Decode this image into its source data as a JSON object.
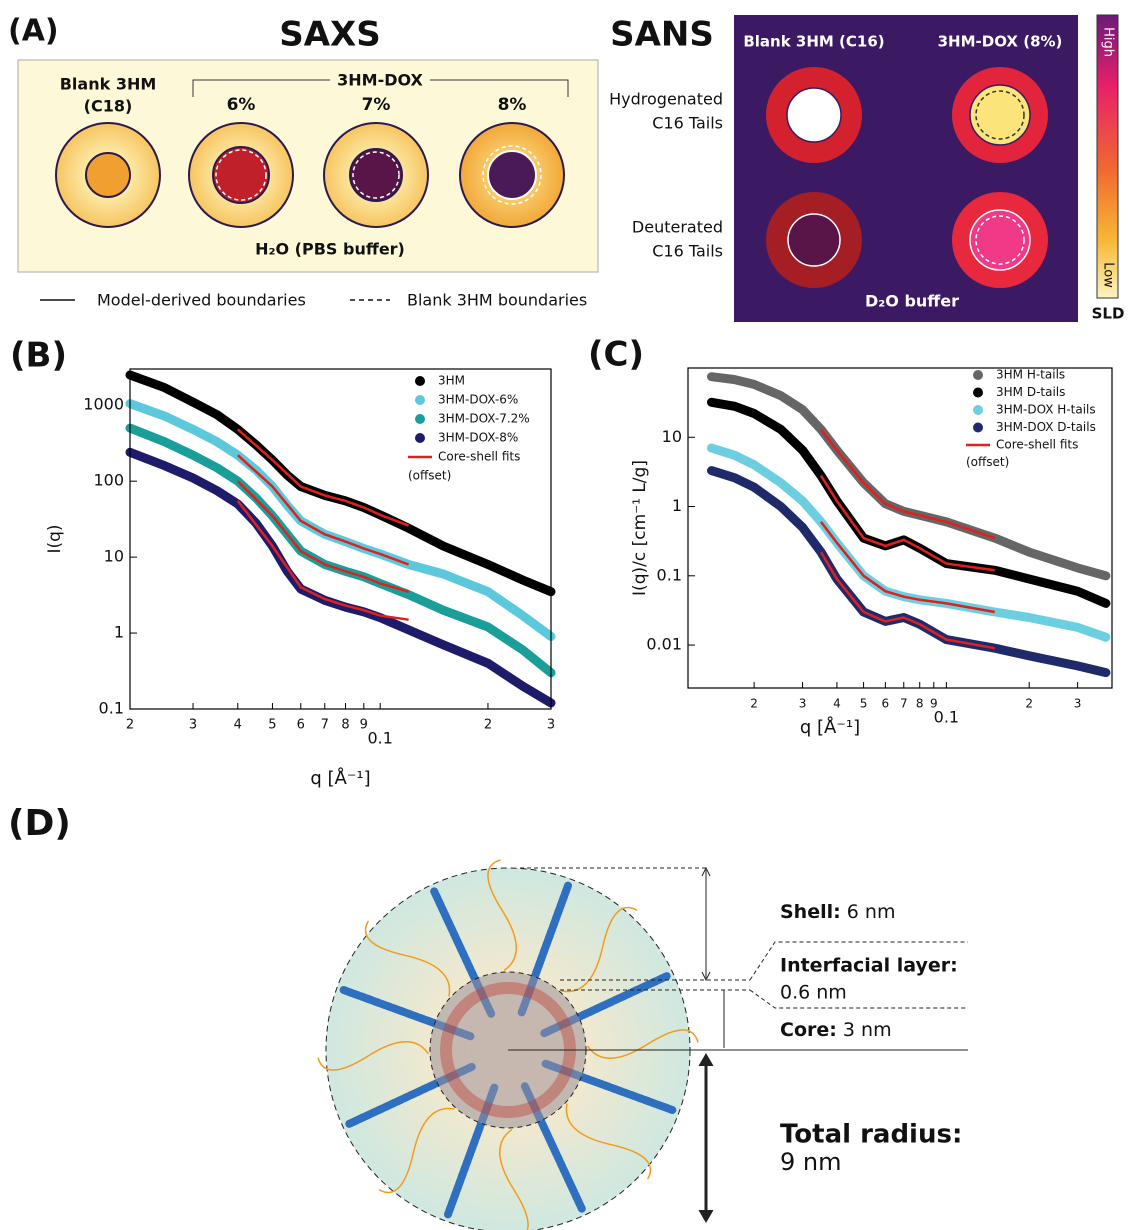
{
  "panel_a": {
    "label": "(A)",
    "saxs": {
      "title": "SAXS",
      "blank": "Blank 3HM",
      "blank_sub": "(C18)",
      "group": "3HM-DOX",
      "levels": [
        "6%",
        "7%",
        "8%"
      ],
      "buffer": "H₂O (PBS buffer)"
    },
    "legend": {
      "solid": "Model-derived boundaries",
      "dashed": "Blank 3HM boundaries"
    },
    "sans": {
      "title": "SANS",
      "columns": [
        "Blank 3HM (C16)",
        "3HM-DOX (8%)"
      ],
      "rows": [
        [
          "Hydrogenated",
          "C16 Tails"
        ],
        [
          "Deuterated",
          "C16 Tails"
        ]
      ],
      "buffer": "D₂O buffer",
      "scale_high": "High",
      "scale_low": "Low",
      "scale_label": "SLD"
    }
  },
  "chart_data": [
    {
      "type": "scatter",
      "panel_label": "(B)",
      "xlabel": "q [Å⁻¹]",
      "ylabel": "I(q)",
      "log_x": true,
      "log_y": true,
      "xlim": [
        0.02,
        0.3
      ],
      "ylim": [
        0.1,
        3000
      ],
      "xticks": [
        {
          "value": 0.02,
          "label": "2"
        },
        {
          "value": 0.03,
          "label": "3"
        },
        {
          "value": 0.04,
          "label": "4"
        },
        {
          "value": 0.05,
          "label": "5"
        },
        {
          "value": 0.06,
          "label": "6"
        },
        {
          "value": 0.07,
          "label": "7"
        },
        {
          "value": 0.08,
          "label": "8"
        },
        {
          "value": 0.09,
          "label": "9"
        },
        0.1,
        {
          "value": 0.2,
          "label": "2"
        },
        {
          "value": 0.3,
          "label": "3"
        }
      ],
      "yticks": [
        0.1,
        1,
        10,
        100,
        1000
      ],
      "legend": "upper right",
      "legend_note": "(offset)",
      "series": [
        {
          "name": "3HM",
          "color": "#000000",
          "x": [
            0.02,
            0.025,
            0.03,
            0.035,
            0.04,
            0.045,
            0.05,
            0.055,
            0.06,
            0.07,
            0.08,
            0.09,
            0.1,
            0.12,
            0.15,
            0.2,
            0.25,
            0.3
          ],
          "values": [
            2500,
            1700,
            1100,
            750,
            480,
            300,
            190,
            120,
            85,
            65,
            55,
            45,
            36,
            24,
            14,
            8,
            5,
            3.5
          ]
        },
        {
          "name": "3HM-DOX-6%",
          "color": "#5bc8dc",
          "x": [
            0.02,
            0.025,
            0.03,
            0.035,
            0.04,
            0.045,
            0.05,
            0.055,
            0.06,
            0.07,
            0.08,
            0.09,
            0.1,
            0.12,
            0.15,
            0.2,
            0.25,
            0.3
          ],
          "values": [
            1050,
            720,
            480,
            330,
            220,
            140,
            85,
            48,
            30,
            20,
            16,
            13,
            11,
            8,
            6,
            3.5,
            1.7,
            0.9
          ]
        },
        {
          "name": "3HM-DOX-7.2%",
          "color": "#1a9e9a",
          "x": [
            0.02,
            0.025,
            0.03,
            0.035,
            0.04,
            0.045,
            0.05,
            0.055,
            0.06,
            0.07,
            0.08,
            0.09,
            0.1,
            0.12,
            0.15,
            0.2,
            0.25,
            0.3
          ],
          "values": [
            500,
            330,
            220,
            150,
            100,
            60,
            35,
            20,
            12,
            8,
            6.5,
            5.5,
            4.5,
            3.2,
            2,
            1.2,
            0.6,
            0.3
          ]
        },
        {
          "name": "3HM-DOX-8%",
          "color": "#1f1b6b",
          "x": [
            0.02,
            0.025,
            0.03,
            0.035,
            0.04,
            0.045,
            0.05,
            0.055,
            0.06,
            0.07,
            0.08,
            0.09,
            0.1,
            0.12,
            0.15,
            0.2,
            0.25,
            0.3
          ],
          "values": [
            240,
            160,
            110,
            75,
            50,
            28,
            14,
            6.5,
            3.8,
            2.7,
            2.2,
            1.9,
            1.6,
            1.1,
            0.7,
            0.4,
            0.2,
            0.12
          ]
        }
      ],
      "fit": {
        "name": "Core-shell fits",
        "color": "#e0201f",
        "curves": [
          {
            "x": [
              0.04,
              0.05,
              0.06,
              0.07,
              0.08,
              0.09,
              0.1,
              0.12
            ],
            "values": [
              480,
              190,
              85,
              65,
              55,
              45,
              36,
              26
            ]
          },
          {
            "x": [
              0.04,
              0.05,
              0.06,
              0.07,
              0.08,
              0.09,
              0.1,
              0.12
            ],
            "values": [
              220,
              85,
              30,
              20,
              16,
              13,
              11,
              8
            ]
          },
          {
            "x": [
              0.04,
              0.05,
              0.06,
              0.07,
              0.08,
              0.09,
              0.1,
              0.12
            ],
            "values": [
              100,
              35,
              12,
              8,
              6.5,
              5.5,
              4.5,
              3.5
            ]
          },
          {
            "x": [
              0.04,
              0.05,
              0.06,
              0.07,
              0.08,
              0.09,
              0.1,
              0.12
            ],
            "values": [
              55,
              14,
              4,
              2.8,
              2.3,
              2,
              1.7,
              1.5
            ]
          }
        ]
      }
    },
    {
      "type": "scatter",
      "panel_label": "(C)",
      "xlabel": "q [Å⁻¹]",
      "ylabel": "I(q)/c [cm⁻¹ L/g]",
      "log_x": true,
      "log_y": true,
      "xlim": [
        0.0115,
        0.4
      ],
      "ylim": [
        0.0024,
        100
      ],
      "xticks": [
        {
          "value": 0.02,
          "label": "2"
        },
        {
          "value": 0.03,
          "label": "3"
        },
        {
          "value": 0.04,
          "label": "4"
        },
        {
          "value": 0.05,
          "label": "5"
        },
        {
          "value": 0.06,
          "label": "6"
        },
        {
          "value": 0.07,
          "label": "7"
        },
        {
          "value": 0.08,
          "label": "8"
        },
        {
          "value": 0.09,
          "label": "9"
        },
        0.1,
        {
          "value": 0.2,
          "label": "2"
        },
        {
          "value": 0.3,
          "label": "3"
        }
      ],
      "yticks": [
        0.01,
        0.1,
        1,
        10
      ],
      "legend": "upper right",
      "legend_note": "(offset)",
      "series": [
        {
          "name": "3HM H-tails",
          "color": "#666666",
          "x": [
            0.014,
            0.017,
            0.02,
            0.025,
            0.03,
            0.035,
            0.04,
            0.05,
            0.06,
            0.07,
            0.08,
            0.1,
            0.15,
            0.2,
            0.3,
            0.38
          ],
          "values": [
            75,
            68,
            58,
            40,
            25,
            13,
            6.5,
            2.2,
            1.1,
            0.85,
            0.75,
            0.6,
            0.35,
            0.22,
            0.13,
            0.1
          ]
        },
        {
          "name": "3HM D-tails",
          "color": "#000000",
          "x": [
            0.014,
            0.017,
            0.02,
            0.025,
            0.03,
            0.035,
            0.04,
            0.05,
            0.06,
            0.07,
            0.08,
            0.1,
            0.15,
            0.2,
            0.3,
            0.38
          ],
          "values": [
            32,
            28,
            22,
            13,
            6.5,
            2.8,
            1.2,
            0.35,
            0.27,
            0.33,
            0.25,
            0.15,
            0.12,
            0.09,
            0.06,
            0.04
          ]
        },
        {
          "name": "3HM-DOX H-tails",
          "color": "#6ccfe0",
          "x": [
            0.014,
            0.017,
            0.02,
            0.025,
            0.03,
            0.035,
            0.04,
            0.05,
            0.06,
            0.07,
            0.08,
            0.1,
            0.15,
            0.2,
            0.3,
            0.38
          ],
          "values": [
            7,
            5.5,
            4,
            2.2,
            1.2,
            0.6,
            0.3,
            0.1,
            0.06,
            0.05,
            0.045,
            0.04,
            0.03,
            0.025,
            0.018,
            0.013
          ]
        },
        {
          "name": "3HM-DOX D-tails",
          "color": "#1f2a6b",
          "x": [
            0.014,
            0.017,
            0.02,
            0.025,
            0.03,
            0.035,
            0.04,
            0.05,
            0.06,
            0.07,
            0.08,
            0.1,
            0.15,
            0.2,
            0.3,
            0.38
          ],
          "values": [
            3.3,
            2.6,
            1.9,
            1.0,
            0.5,
            0.22,
            0.09,
            0.03,
            0.022,
            0.025,
            0.02,
            0.012,
            0.009,
            0.007,
            0.005,
            0.004
          ]
        }
      ],
      "fit": {
        "name": "Core-shell fits",
        "color": "#e0201f",
        "curves": [
          {
            "x": [
              0.035,
              0.04,
              0.05,
              0.06,
              0.07,
              0.08,
              0.1,
              0.15
            ],
            "values": [
              13,
              6.5,
              2.2,
              1.1,
              0.85,
              0.75,
              0.6,
              0.35
            ]
          },
          {
            "x": [
              0.035,
              0.04,
              0.05,
              0.06,
              0.07,
              0.08,
              0.1,
              0.15
            ],
            "values": [
              2.8,
              1.2,
              0.35,
              0.27,
              0.33,
              0.25,
              0.15,
              0.12
            ]
          },
          {
            "x": [
              0.035,
              0.04,
              0.05,
              0.06,
              0.07,
              0.08,
              0.1,
              0.15
            ],
            "values": [
              0.6,
              0.3,
              0.1,
              0.06,
              0.05,
              0.045,
              0.04,
              0.03
            ]
          },
          {
            "x": [
              0.035,
              0.04,
              0.05,
              0.06,
              0.07,
              0.08,
              0.1,
              0.15
            ],
            "values": [
              0.22,
              0.09,
              0.03,
              0.022,
              0.025,
              0.02,
              0.012,
              0.009
            ]
          }
        ]
      }
    }
  ],
  "panel_d": {
    "label": "(D)",
    "annotations": [
      {
        "bold": "Shell:",
        "text": "6 nm"
      },
      {
        "bold": "Interfacial layer:",
        "text": "0.6 nm"
      },
      {
        "bold": "Core:",
        "text": "3 nm"
      },
      {
        "bold": "Total radius:",
        "text": "9 nm"
      }
    ]
  }
}
